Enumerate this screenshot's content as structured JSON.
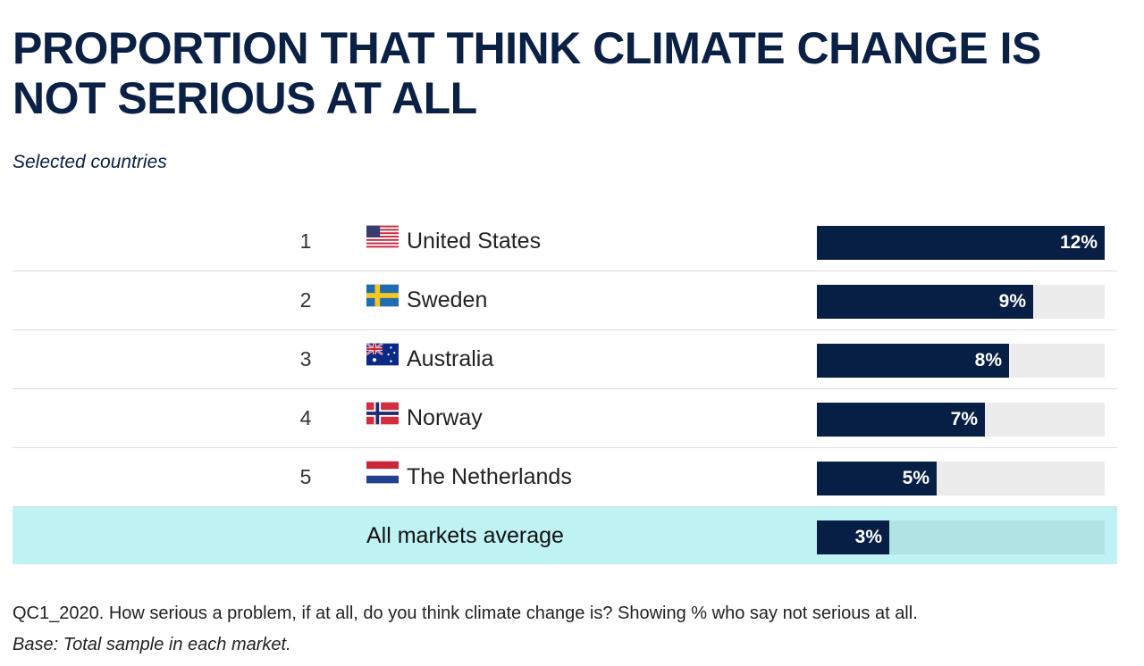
{
  "header": {
    "title": "PROPORTION THAT THINK CLIMATE CHANGE IS NOT SERIOUS AT ALL",
    "subtitle": "Selected countries"
  },
  "colors": {
    "bar": "#071f45",
    "track": "#ececec",
    "average_row_bg": "#bff3f3",
    "title": "#0a2044"
  },
  "chart_data": {
    "type": "bar",
    "orientation": "horizontal",
    "title": "PROPORTION THAT THINK CLIMATE CHANGE IS NOT SERIOUS AT ALL",
    "subtitle": "Selected countries",
    "xlim": [
      0,
      12
    ],
    "rows": [
      {
        "rank": "1",
        "country": "United States",
        "flag": "flag-us-icon",
        "value": 12,
        "label": "12%"
      },
      {
        "rank": "2",
        "country": "Sweden",
        "flag": "flag-se-icon",
        "value": 9,
        "label": "9%"
      },
      {
        "rank": "3",
        "country": "Australia",
        "flag": "flag-au-icon",
        "value": 8,
        "label": "8%"
      },
      {
        "rank": "4",
        "country": "Norway",
        "flag": "flag-no-icon",
        "value": 7,
        "label": "7%"
      },
      {
        "rank": "5",
        "country": "The Netherlands",
        "flag": "flag-nl-icon",
        "value": 5,
        "label": "5%"
      }
    ],
    "average": {
      "label": "All markets average",
      "value": 3,
      "label_value": "3%"
    }
  },
  "footer": {
    "question": "QC1_2020. How serious a problem, if at all, do you think climate change is? Showing % who say not serious at all.",
    "base": "Base: Total sample in each market."
  }
}
